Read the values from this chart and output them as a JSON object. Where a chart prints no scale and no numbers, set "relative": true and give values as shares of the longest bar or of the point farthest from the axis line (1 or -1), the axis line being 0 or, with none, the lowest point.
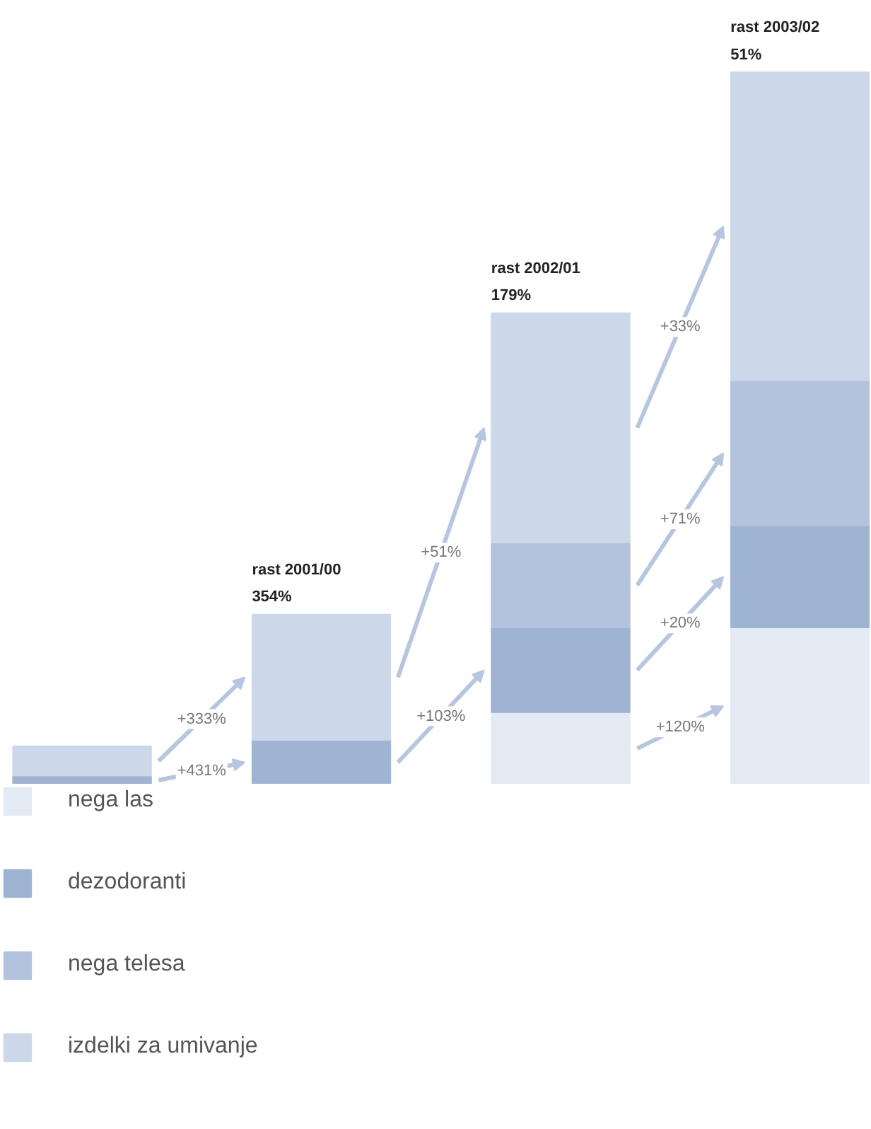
{
  "chart_data": {
    "type": "bar",
    "stacked": true,
    "relative": true,
    "categories": [
      null,
      null,
      null,
      null
    ],
    "series": [
      {
        "name": "nega las",
        "color": "#e4eaf4",
        "values": [
          null,
          null,
          0.101,
          0.22
        ]
      },
      {
        "name": "dezodoranti",
        "color": "#9fb3d3",
        "values": [
          0.012,
          0.062,
          0.119,
          0.143
        ]
      },
      {
        "name": "nega telesa",
        "color": "#b3c3dd",
        "values": [
          null,
          null,
          0.119,
          0.204
        ]
      },
      {
        "name": "izdelki za umivanje",
        "color": "#ccd7e9",
        "values": [
          0.042,
          0.177,
          0.323,
          0.433
        ]
      }
    ],
    "annotations": [
      "rast 2001/00\n354%",
      "rast 2002/01\n179%",
      "rast 2003/02\n51%",
      "+431%",
      "+333%",
      "+103%",
      "+51%",
      "+120%",
      "+20%",
      "+71%",
      "+33%"
    ],
    "legend": "bottom",
    "grid": false
  }
}
